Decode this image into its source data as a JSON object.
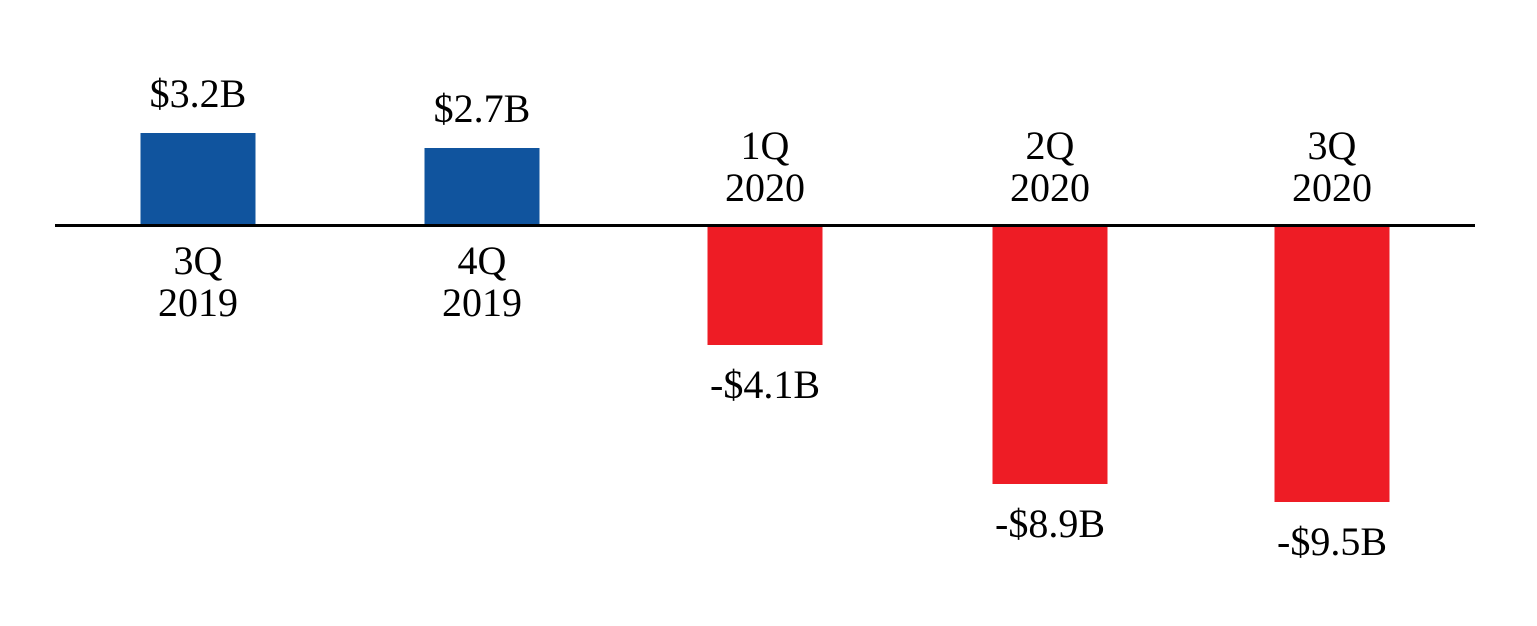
{
  "chart_data": {
    "type": "bar",
    "title": "",
    "xlabel": "",
    "ylabel": "",
    "categories": [
      "3Q 2019",
      "4Q 2019",
      "1Q 2020",
      "2Q 2020",
      "3Q 2020"
    ],
    "values": [
      3.2,
      2.7,
      -4.1,
      -8.9,
      -9.5
    ],
    "data_labels": [
      "$3.2B",
      "$2.7B",
      "-$4.1B",
      "-$8.9B",
      "-$9.5B"
    ],
    "baseline": 0,
    "grid": false,
    "legend": false,
    "colors": {
      "positive": "#10549E",
      "negative": "#EE1C25",
      "axis": "#000000",
      "text": "#000000"
    },
    "points": [
      {
        "quarter": "3Q",
        "year": "2019",
        "value": 3.2,
        "label": "$3.2B"
      },
      {
        "quarter": "4Q",
        "year": "2019",
        "value": 2.7,
        "label": "$2.7B"
      },
      {
        "quarter": "1Q",
        "year": "2020",
        "value": -4.1,
        "label": "-$4.1B"
      },
      {
        "quarter": "2Q",
        "year": "2020",
        "value": -8.9,
        "label": "-$8.9B"
      },
      {
        "quarter": "3Q",
        "year": "2020",
        "value": -9.5,
        "label": "-$9.5B"
      }
    ]
  }
}
